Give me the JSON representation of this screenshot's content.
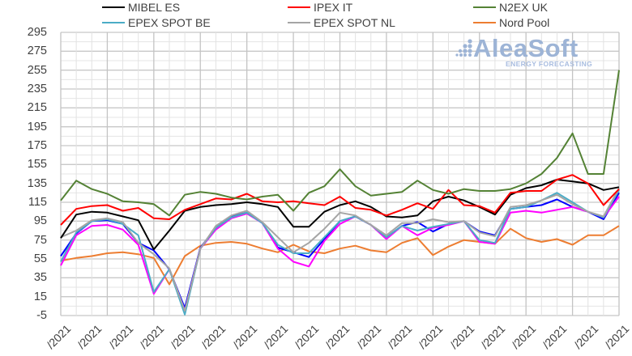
{
  "chart_data": {
    "type": "line",
    "title": "",
    "xlabel": "",
    "ylabel": "",
    "ylim": [
      -5,
      295
    ],
    "yticks": [
      295,
      275,
      255,
      235,
      215,
      195,
      175,
      155,
      135,
      115,
      95,
      75,
      55,
      35,
      15,
      -5
    ],
    "ytick_labels": [
      "295",
      "275",
      "255",
      "235",
      "215",
      "195",
      "175",
      "155",
      "135",
      "115",
      "95",
      "75",
      "55",
      "35",
      "15",
      "-5"
    ],
    "grid": true,
    "legend_position": "top",
    "x_tick_label_suffix": "/2021",
    "x_tick_labels": [
      "/2021",
      "/2021",
      "/2021",
      "/2021",
      "/2021",
      "/2021",
      "/2021",
      "/2021",
      "/2021",
      "/2021",
      "/2021",
      "/2021",
      "/2021",
      "/2021",
      "/2021",
      "/2021",
      "/2021",
      "/2021",
      "/2021"
    ],
    "n_points": 37,
    "series": [
      {
        "name": "MIBEL ES",
        "color": "#000000",
        "in_legend": true,
        "values": [
          77,
          102,
          105,
          104,
          100,
          96,
          65,
          85,
          106,
          110,
          112,
          113,
          115,
          113,
          110,
          89,
          89,
          105,
          112,
          116,
          110,
          100,
          99,
          101,
          116,
          121,
          117,
          110,
          102,
          123,
          130,
          133,
          139,
          137,
          135,
          128,
          131
        ]
      },
      {
        "name": "IPEX IT",
        "color": "#ff0000",
        "in_legend": true,
        "values": [
          91,
          108,
          111,
          112,
          106,
          109,
          98,
          97,
          107,
          113,
          119,
          118,
          124,
          116,
          115,
          116,
          114,
          112,
          121,
          109,
          107,
          101,
          107,
          114,
          108,
          128,
          112,
          111,
          104,
          125,
          127,
          127,
          139,
          144,
          135,
          112,
          129
        ]
      },
      {
        "name": "N2EX UK",
        "color": "#548235",
        "in_legend": true,
        "values": [
          117,
          138,
          129,
          124,
          116,
          115,
          113,
          101,
          123,
          126,
          124,
          120,
          118,
          121,
          123,
          106,
          125,
          132,
          150,
          132,
          122,
          124,
          126,
          138,
          128,
          124,
          129,
          127,
          127,
          129,
          135,
          145,
          162,
          188,
          145,
          145,
          255
        ]
      },
      {
        "name": "EPEX SPOT BE",
        "color": "#4bacc6",
        "in_legend": true,
        "values": [
          52,
          83,
          95,
          97,
          92,
          80,
          20,
          44,
          -4,
          66,
          88,
          99,
          104,
          93,
          70,
          61,
          61,
          78,
          95,
          100,
          91,
          78,
          90,
          85,
          89,
          92,
          95,
          75,
          72,
          108,
          110,
          117,
          125,
          115,
          105,
          99,
          128
        ]
      },
      {
        "name": "EPEX SPOT NL",
        "color": "#a5a5a5",
        "in_legend": true,
        "values": [
          78,
          85,
          96,
          98,
          94,
          72,
          60,
          45,
          0,
          66,
          90,
          101,
          106,
          94,
          78,
          62,
          72,
          87,
          104,
          101,
          91,
          80,
          93,
          93,
          97,
          94,
          95,
          83,
          79,
          110,
          112,
          117,
          123,
          113,
          105,
          100,
          130
        ]
      },
      {
        "name": "Nord Pool",
        "color": "#ed7d31",
        "in_legend": true,
        "values": [
          53,
          56,
          58,
          61,
          62,
          60,
          56,
          28,
          58,
          69,
          72,
          73,
          71,
          66,
          62,
          70,
          63,
          61,
          66,
          69,
          64,
          62,
          72,
          77,
          59,
          68,
          75,
          73,
          71,
          87,
          77,
          73,
          76,
          70,
          80,
          80,
          90
        ]
      },
      {
        "name": "",
        "color": "#0000ff",
        "in_legend": false,
        "values": [
          58,
          82,
          95,
          96,
          92,
          72,
          64,
          44,
          3,
          67,
          88,
          100,
          104,
          93,
          67,
          62,
          57,
          76,
          95,
          100,
          91,
          78,
          90,
          94,
          84,
          92,
          95,
          84,
          80,
          108,
          110,
          112,
          118,
          110,
          105,
          97,
          125
        ]
      },
      {
        "name": "",
        "color": "#ff00ff",
        "in_legend": false,
        "values": [
          48,
          80,
          90,
          91,
          86,
          70,
          18,
          44,
          0,
          66,
          86,
          98,
          103,
          93,
          66,
          52,
          47,
          74,
          92,
          100,
          91,
          76,
          90,
          80,
          88,
          91,
          95,
          73,
          71,
          104,
          106,
          104,
          107,
          110,
          105,
          99,
          121
        ]
      }
    ]
  },
  "legend": {
    "items": [
      {
        "label": "MIBEL ES",
        "color": "#000000"
      },
      {
        "label": "IPEX IT",
        "color": "#ff0000"
      },
      {
        "label": "N2EX UK",
        "color": "#548235"
      },
      {
        "label": "EPEX SPOT BE",
        "color": "#4bacc6"
      },
      {
        "label": "EPEX SPOT NL",
        "color": "#a5a5a5"
      },
      {
        "label": "Nord Pool",
        "color": "#ed7d31"
      }
    ]
  },
  "watermark": {
    "title": "AleaSoft",
    "subtitle": "ENERGY FORECASTING"
  }
}
